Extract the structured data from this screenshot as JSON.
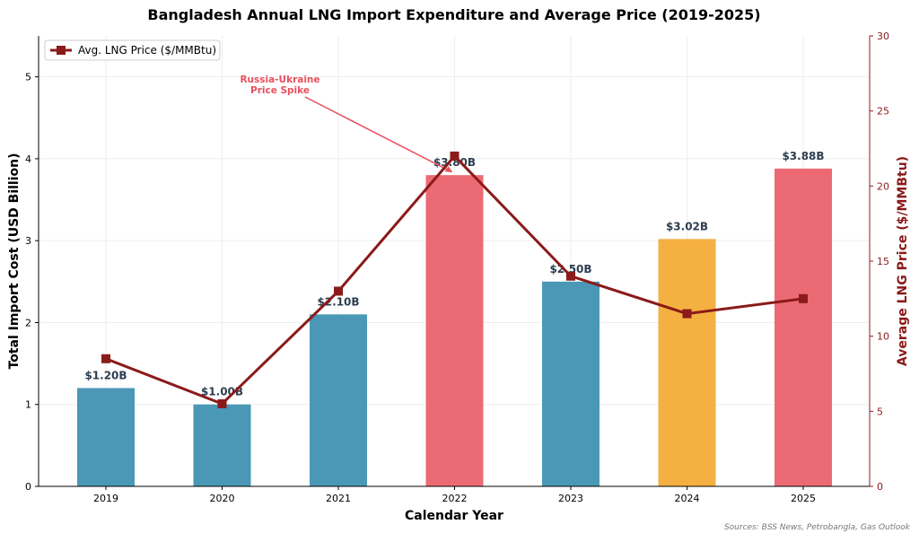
{
  "chart_data": {
    "type": "bar",
    "title": "Bangladesh Annual LNG Import Expenditure and Average Price (2019-2025)",
    "xlabel": "Calendar Year",
    "ylabel": "Total Import Cost (USD Billion)",
    "y2label": "Average LNG Price ($/MMBtu)",
    "categories": [
      "2019",
      "2020",
      "2021",
      "2022",
      "2023",
      "2024",
      "2025"
    ],
    "ylim": [
      0,
      5.5
    ],
    "y2lim": [
      0,
      30
    ],
    "yticks": [
      "0",
      "1",
      "2",
      "3",
      "4",
      "5"
    ],
    "y2ticks": [
      "0",
      "5",
      "10",
      "15",
      "20",
      "25",
      "30"
    ],
    "grid": true,
    "series": [
      {
        "name": "Total Import Cost (USD Billion)",
        "type": "bar",
        "values": [
          1.2,
          1.0,
          2.1,
          3.8,
          2.5,
          3.02,
          3.88
        ],
        "labels": [
          "$1.20B",
          "$1.00B",
          "$2.10B",
          "$3.80B",
          "$2.50B",
          "$3.02B",
          "$3.88B"
        ],
        "colors": [
          "#4a98b6",
          "#4a98b6",
          "#4a98b6",
          "#ec6a74",
          "#4a98b6",
          "#f5b042",
          "#ec6a74"
        ]
      },
      {
        "name": "Avg. LNG Price ($/MMBtu)",
        "type": "line",
        "axis": "right",
        "values": [
          8.5,
          5.5,
          13.0,
          22.0,
          14.0,
          11.5,
          12.5
        ],
        "color": "#8b1a1a"
      }
    ],
    "legend": {
      "placement": "top-left",
      "label": "Avg. LNG Price ($/MMBtu)"
    },
    "annotation": {
      "text_line1": "Russia-Ukraine",
      "text_line2": "Price Spike",
      "target_category": "2022",
      "color": "#e8515d"
    },
    "source": "Sources: BSS News, Petrobangla, Gas Outlook"
  }
}
